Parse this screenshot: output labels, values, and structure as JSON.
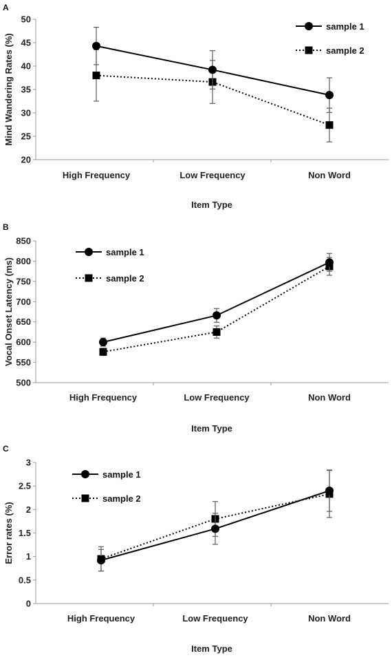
{
  "chart_data": [
    {
      "panel": "A",
      "type": "line",
      "categories": [
        "High Frequency",
        "Low Frequency",
        "Non Word"
      ],
      "xlabel": "Item Type",
      "ylabel": "Mind Wandering Rates (%)",
      "ylim": [
        20,
        50
      ],
      "yticks": [
        20,
        25,
        30,
        35,
        40,
        45,
        50
      ],
      "legend_position": "top-right",
      "series": [
        {
          "name": "sample 1",
          "values": [
            44.3,
            39.2,
            33.8
          ],
          "errors": [
            4.0,
            4.1,
            3.7
          ],
          "marker": "circle",
          "line": "solid"
        },
        {
          "name": "sample 2",
          "values": [
            38.0,
            36.6,
            27.4
          ],
          "errors": [
            5.5,
            4.6,
            3.6
          ],
          "marker": "square",
          "line": "dotted"
        }
      ]
    },
    {
      "panel": "B",
      "type": "line",
      "categories": [
        "High Frequency",
        "Low Frequency",
        "Non Word"
      ],
      "xlabel": "Item Type",
      "ylabel": "Vocal Onset Latency (ms)",
      "ylim": [
        500,
        850
      ],
      "yticks": [
        500,
        550,
        600,
        650,
        700,
        750,
        800,
        850
      ],
      "legend_position": "top-left",
      "series": [
        {
          "name": "sample 1",
          "values": [
            600,
            666,
            797
          ],
          "errors": [
            10,
            17,
            22
          ],
          "marker": "circle",
          "line": "solid"
        },
        {
          "name": "sample 2",
          "values": [
            576,
            625,
            787
          ],
          "errors": [
            9,
            15,
            22
          ],
          "marker": "square",
          "line": "dotted"
        }
      ]
    },
    {
      "panel": "C",
      "type": "line",
      "categories": [
        "High Frequency",
        "Low Frequency",
        "Non Word"
      ],
      "xlabel": "Item Type",
      "ylabel": "Error rates (%)",
      "ylim": [
        0,
        3
      ],
      "yticks": [
        0,
        0.5,
        1,
        1.5,
        2,
        2.5,
        3
      ],
      "legend_position": "top-left",
      "series": [
        {
          "name": "sample 1",
          "values": [
            0.92,
            1.59,
            2.4
          ],
          "errors": [
            0.23,
            0.33,
            0.44
          ],
          "marker": "circle",
          "line": "solid"
        },
        {
          "name": "sample 2",
          "values": [
            0.95,
            1.8,
            2.33
          ],
          "errors": [
            0.26,
            0.37,
            0.5
          ],
          "marker": "square",
          "line": "dotted"
        }
      ]
    }
  ]
}
